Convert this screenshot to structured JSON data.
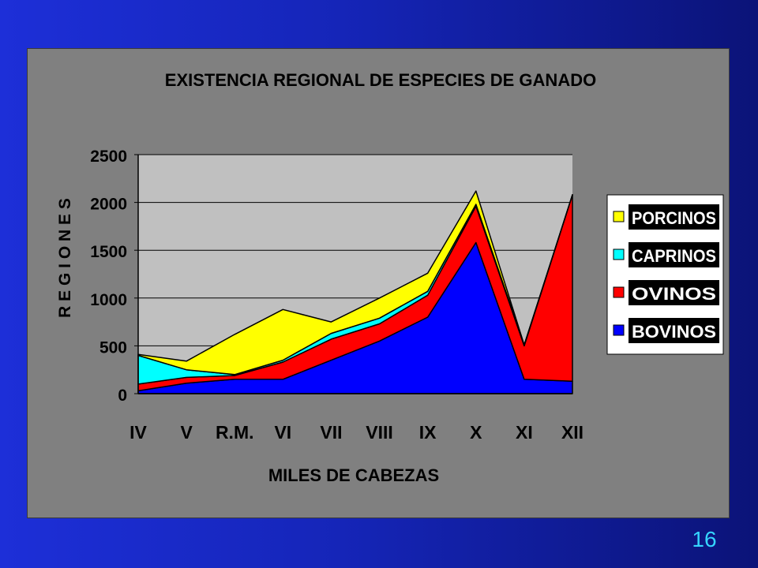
{
  "slide": {
    "number": "16"
  },
  "colors": {
    "background_left": "#1d2fd8",
    "background_right": "#0b1378",
    "panel": "#808080",
    "plot_area": "#c0c0c0",
    "slide_number": "#35d5ff"
  },
  "chart_data": {
    "type": "area",
    "stacked": true,
    "title": "EXISTENCIA REGIONAL DE ESPECIES DE GANADO",
    "xlabel": "MILES DE CABEZAS",
    "ylabel": "R E G I O N E S",
    "categories": [
      "IV",
      "V",
      "R.M.",
      "VI",
      "VII",
      "VIII",
      "IX",
      "X",
      "XI",
      "XII"
    ],
    "ylim": [
      0,
      2500
    ],
    "yticks": [
      "0",
      "500",
      "1000",
      "1500",
      "2000",
      "2500"
    ],
    "grid": true,
    "legend_position": "right",
    "series": [
      {
        "name": "BOVINOS",
        "color": "#0000ff",
        "values": [
          30,
          110,
          150,
          150,
          350,
          550,
          800,
          1580,
          150,
          130
        ]
      },
      {
        "name": "OVINOS",
        "color": "#ff0000",
        "values": [
          70,
          60,
          40,
          180,
          220,
          180,
          230,
          380,
          350,
          1950
        ]
      },
      {
        "name": "CAPRINOS",
        "color": "#00ffff",
        "values": [
          300,
          80,
          10,
          20,
          60,
          60,
          40,
          20,
          10,
          0
        ]
      },
      {
        "name": "PORCINOS",
        "color": "#ffff00",
        "values": [
          10,
          90,
          420,
          530,
          120,
          210,
          190,
          140,
          0,
          0
        ]
      }
    ]
  }
}
